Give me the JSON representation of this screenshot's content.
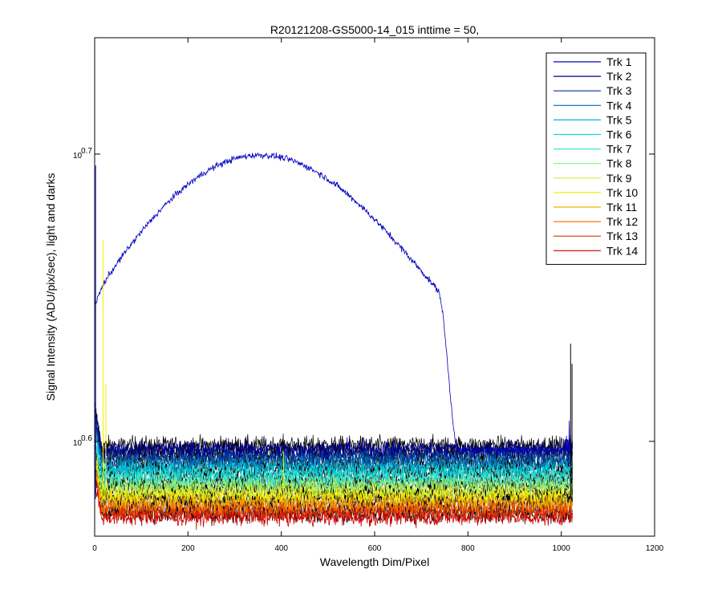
{
  "chart_data": {
    "type": "line",
    "title": "R20121208-GS5000-14_015 inttime = 50,",
    "xlabel": "Wavelength Dim/Pixel",
    "ylabel": "Signal Intensity (ADU/pix/sec), light and darks",
    "xlim": [
      0,
      1200
    ],
    "ylim_log10": [
      0.567,
      0.7405
    ],
    "yscale": "log",
    "x_ticks": [
      0,
      200,
      400,
      600,
      800,
      1000,
      1200
    ],
    "y_ticks": [
      {
        "base": "10",
        "exp": "0.6",
        "log10": 0.6
      },
      {
        "base": "10",
        "exp": "0.7",
        "log10": 0.7
      }
    ],
    "grid": false,
    "legend_position": "top-right",
    "pixel_count": 1024,
    "series": [
      {
        "name": "Trk 1",
        "color": "#0000bf",
        "profile": "peak",
        "edge_log10": 0.597,
        "peak_log10": 0.698,
        "noise_log10": 0.0011
      },
      {
        "name": "Trk 2",
        "color": "#00008f",
        "profile": "flat",
        "level_log10": 0.5975,
        "noise_log10": 0.0028
      },
      {
        "name": "Trk 3",
        "color": "#0030a0",
        "profile": "flat",
        "level_log10": 0.5955,
        "noise_log10": 0.0028
      },
      {
        "name": "Trk 4",
        "color": "#0068b8",
        "profile": "flat",
        "level_log10": 0.5935,
        "noise_log10": 0.0028
      },
      {
        "name": "Trk 5",
        "color": "#00b8d8",
        "profile": "flat",
        "level_log10": 0.5915,
        "noise_log10": 0.0028
      },
      {
        "name": "Trk 6",
        "color": "#10d8d8",
        "profile": "flat",
        "level_log10": 0.5895,
        "noise_log10": 0.0028
      },
      {
        "name": "Trk 7",
        "color": "#40e8d0",
        "profile": "flat",
        "level_log10": 0.5875,
        "noise_log10": 0.0028
      },
      {
        "name": "Trk 8",
        "color": "#80f080",
        "profile": "flat",
        "level_log10": 0.5855,
        "noise_log10": 0.0028
      },
      {
        "name": "Trk 9",
        "color": "#c8f040",
        "profile": "flat",
        "level_log10": 0.5835,
        "noise_log10": 0.0028
      },
      {
        "name": "Trk 10",
        "color": "#f0f000",
        "profile": "flat",
        "level_log10": 0.5815,
        "noise_log10": 0.0028
      },
      {
        "name": "Trk 11",
        "color": "#f0b000",
        "profile": "flat",
        "level_log10": 0.5795,
        "noise_log10": 0.0028
      },
      {
        "name": "Trk 12",
        "color": "#ff7000",
        "profile": "flat",
        "level_log10": 0.5775,
        "noise_log10": 0.0028
      },
      {
        "name": "Trk 13",
        "color": "#e03000",
        "profile": "flat",
        "level_log10": 0.5755,
        "noise_log10": 0.0028
      },
      {
        "name": "Trk 14",
        "color": "#cc0000",
        "profile": "flat",
        "level_log10": 0.5735,
        "noise_log10": 0.0028
      }
    ],
    "dark_trace_color": "#000000"
  }
}
